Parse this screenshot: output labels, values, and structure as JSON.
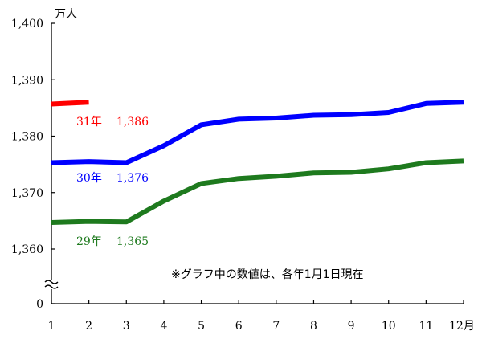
{
  "chart_data": {
    "type": "line",
    "title": "",
    "unit_label": "万人",
    "xlabel": "",
    "ylabel": "",
    "x": [
      1,
      2,
      3,
      4,
      5,
      6,
      7,
      8,
      9,
      10,
      11,
      12
    ],
    "x_tick_labels": [
      "1",
      "2",
      "3",
      "4",
      "5",
      "6",
      "7",
      "8",
      "9",
      "10",
      "11",
      "12月"
    ],
    "y_tick_labels": [
      "1,400",
      "1,390",
      "1,380",
      "1,370",
      "1,360",
      "0"
    ],
    "y_ticks": [
      1400,
      1390,
      1380,
      1370,
      1360,
      0
    ],
    "ylim": [
      1350,
      1400
    ],
    "y_axis_break": true,
    "grid": false,
    "note": "※グラフ中の数値は、各年1月1日現在",
    "series": [
      {
        "name": "31年",
        "label": "31年 1,386",
        "color": "#ff0000",
        "x": [
          1,
          2
        ],
        "values": [
          1385.7,
          1386.0
        ]
      },
      {
        "name": "30年",
        "label": "30年 1,376",
        "color": "#0000ff",
        "x": [
          1,
          2,
          3,
          4,
          5,
          6,
          7,
          8,
          9,
          10,
          11,
          12
        ],
        "values": [
          1375.3,
          1375.5,
          1375.3,
          1378.3,
          1382.0,
          1383.0,
          1383.2,
          1383.7,
          1383.8,
          1384.2,
          1385.8,
          1386.0
        ]
      },
      {
        "name": "29年",
        "label": "29年 1,365",
        "color": "#1e7a1e",
        "x": [
          1,
          2,
          3,
          4,
          5,
          6,
          7,
          8,
          9,
          10,
          11,
          12
        ],
        "values": [
          1364.7,
          1364.9,
          1364.8,
          1368.5,
          1371.6,
          1372.5,
          1372.9,
          1373.5,
          1373.6,
          1374.2,
          1375.3,
          1375.6
        ]
      }
    ]
  }
}
